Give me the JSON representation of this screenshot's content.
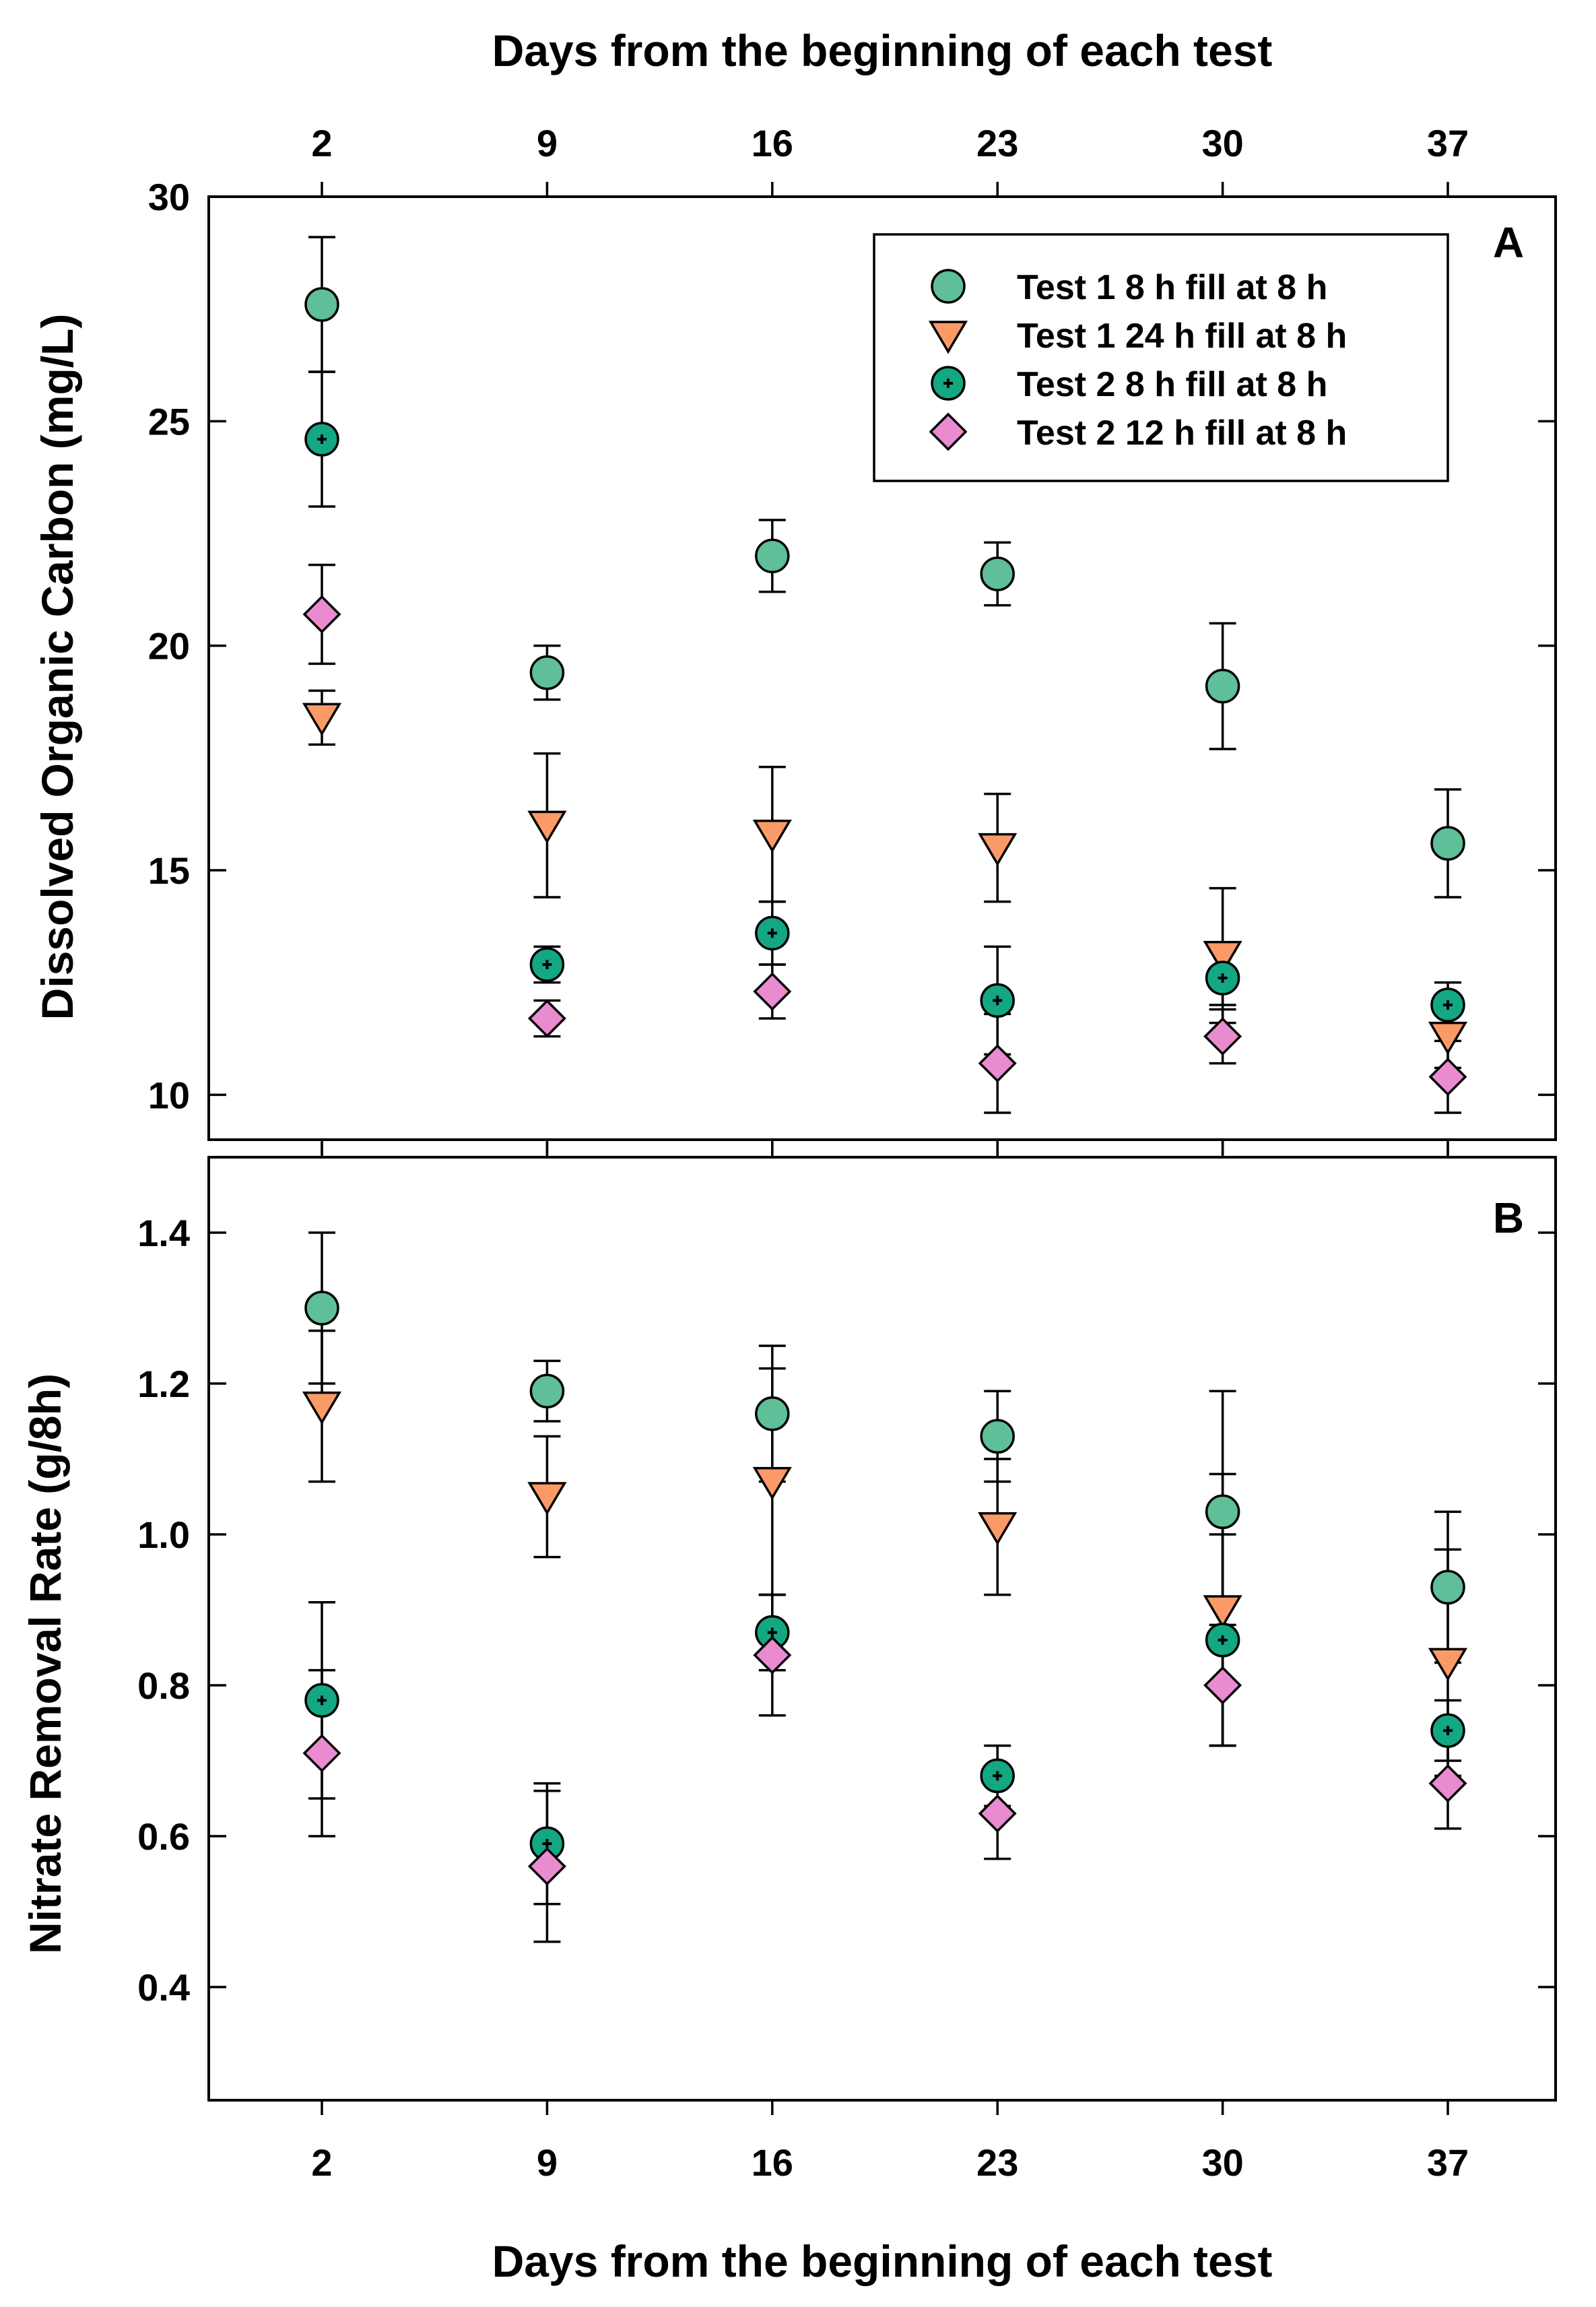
{
  "figure": {
    "top_axis_title": "Days from the beginning of each test",
    "bottom_axis_title": "Days from the beginning of each test"
  },
  "colors": {
    "test1_8h": "#5fbf98",
    "test1_24h": "#fa9a66",
    "test2_8h": "#13a783",
    "test2_12h": "#e98bcf",
    "frame": "#000000"
  },
  "legend": [
    {
      "label": "Test 1 8 h fill at 8 h",
      "series_key": "test1_8h",
      "marker": "circle"
    },
    {
      "label": "Test 1 24 h fill at 8 h",
      "series_key": "test1_24h",
      "marker": "triangle-down"
    },
    {
      "label": "Test 2 8 h fill at 8 h",
      "series_key": "test2_8h",
      "marker": "circle-cross"
    },
    {
      "label": "Test 2 12 h fill at 8 h",
      "series_key": "test2_12h",
      "marker": "diamond"
    }
  ],
  "chart_data": [
    {
      "id": "A",
      "type": "scatter",
      "panel_label": "A",
      "title": "",
      "xlabel": "Days from the beginning of each test",
      "ylabel": "Dissolved Organic Carbon (mg/L)",
      "x": [
        2,
        9,
        16,
        23,
        30,
        37
      ],
      "xticks": [
        2,
        9,
        16,
        23,
        30,
        37
      ],
      "yticks": [
        10,
        15,
        20,
        25,
        30
      ],
      "ylim": [
        9,
        30
      ],
      "grid": false,
      "legend_position": "top-right",
      "series": [
        {
          "name": "Test 1 8 h fill at 8 h",
          "key": "test1_8h",
          "values": [
            27.6,
            19.4,
            22.0,
            21.6,
            19.1,
            15.6
          ],
          "errors": [
            1.5,
            0.6,
            0.8,
            0.7,
            1.4,
            1.2
          ]
        },
        {
          "name": "Test 1 24 h fill at 8 h",
          "key": "test1_24h",
          "values": [
            18.4,
            16.0,
            15.8,
            15.5,
            13.1,
            11.3
          ],
          "errors": [
            0.6,
            1.6,
            1.5,
            1.2,
            1.5,
            0.7
          ]
        },
        {
          "name": "Test 2 8 h fill at 8 h",
          "key": "test2_8h",
          "values": [
            24.6,
            12.9,
            13.6,
            12.1,
            12.6,
            12.0
          ],
          "errors": [
            1.5,
            0.4,
            0.7,
            1.2,
            0.6,
            0.5
          ]
        },
        {
          "name": "Test 2 12 h fill at 8 h",
          "key": "test2_12h",
          "values": [
            20.7,
            11.7,
            12.3,
            10.7,
            11.3,
            10.4
          ],
          "errors": [
            1.1,
            0.4,
            0.6,
            1.1,
            0.6,
            0.8
          ]
        }
      ]
    },
    {
      "id": "B",
      "type": "scatter",
      "panel_label": "B",
      "title": "",
      "xlabel": "Days from the beginning of each test",
      "ylabel": "Nitrate Removal Rate (g/8h)",
      "x": [
        2,
        9,
        16,
        23,
        30,
        37
      ],
      "xticks": [
        2,
        9,
        16,
        23,
        30,
        37
      ],
      "yticks": [
        0.4,
        0.6,
        0.8,
        1.0,
        1.2,
        1.4
      ],
      "ylim": [
        0.25,
        1.5
      ],
      "grid": false,
      "legend_position": "none",
      "series": [
        {
          "name": "Test 1 8 h fill at 8 h",
          "key": "test1_8h",
          "values": [
            1.3,
            1.19,
            1.16,
            1.13,
            1.03,
            0.93
          ],
          "errors": [
            0.1,
            0.04,
            0.09,
            0.06,
            0.16,
            0.1
          ]
        },
        {
          "name": "Test 1 24 h fill at 8 h",
          "key": "test1_24h",
          "values": [
            1.17,
            1.05,
            1.07,
            1.01,
            0.9,
            0.83
          ],
          "errors": [
            0.1,
            0.08,
            0.15,
            0.09,
            0.18,
            0.15
          ]
        },
        {
          "name": "Test 2 8 h fill at 8 h",
          "key": "test2_8h",
          "values": [
            0.78,
            0.59,
            0.87,
            0.68,
            0.86,
            0.74
          ],
          "errors": [
            0.13,
            0.08,
            0.05,
            0.04,
            0.14,
            0.04
          ]
        },
        {
          "name": "Test 2 12 h fill at 8 h",
          "key": "test2_12h",
          "values": [
            0.71,
            0.56,
            0.84,
            0.63,
            0.8,
            0.67
          ],
          "errors": [
            0.11,
            0.1,
            0.08,
            0.06,
            0.08,
            0.06
          ]
        }
      ]
    }
  ]
}
